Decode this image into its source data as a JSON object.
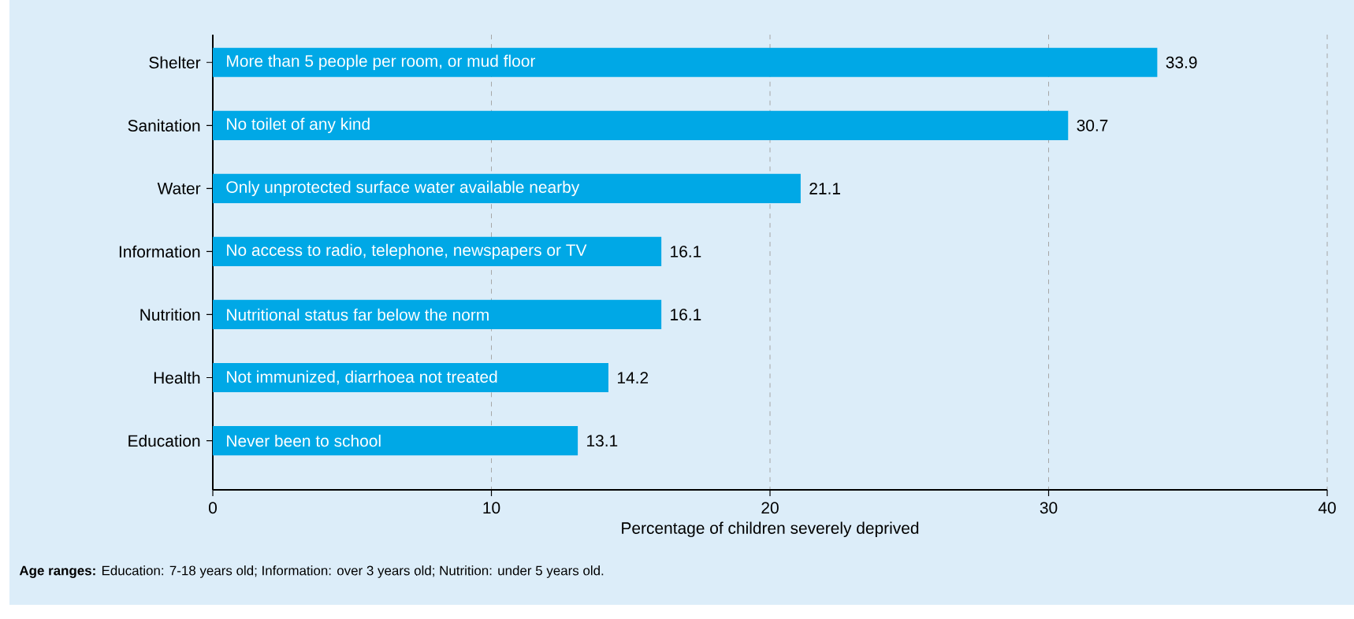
{
  "chart_data": {
    "type": "bar",
    "orientation": "horizontal",
    "xlabel": "Percentage of children severely deprived",
    "categories": [
      "Shelter",
      "Sanitation",
      "Water",
      "Information",
      "Nutrition",
      "Health",
      "Education"
    ],
    "values": [
      33.9,
      30.7,
      21.1,
      16.1,
      16.1,
      14.2,
      13.1
    ],
    "color": "#00a8e6",
    "xlim": [
      0,
      40
    ],
    "xticks": [
      0,
      10,
      20,
      30,
      40
    ],
    "grid": "x",
    "data_labels": true,
    "annotations": [
      "More than 5 people per room, or mud floor",
      "No toilet of any kind",
      "Only unprotected surface water available nearby",
      "No access to radio, telephone, newspapers or TV",
      "Nutritional status far below the norm",
      "Not immunized, diarrhoea not treated",
      "Never been to school",
      "**Age ranges:** Education: 7-18 years old; Information: over 3 years old; Nutrition: under 5 years old."
    ]
  }
}
